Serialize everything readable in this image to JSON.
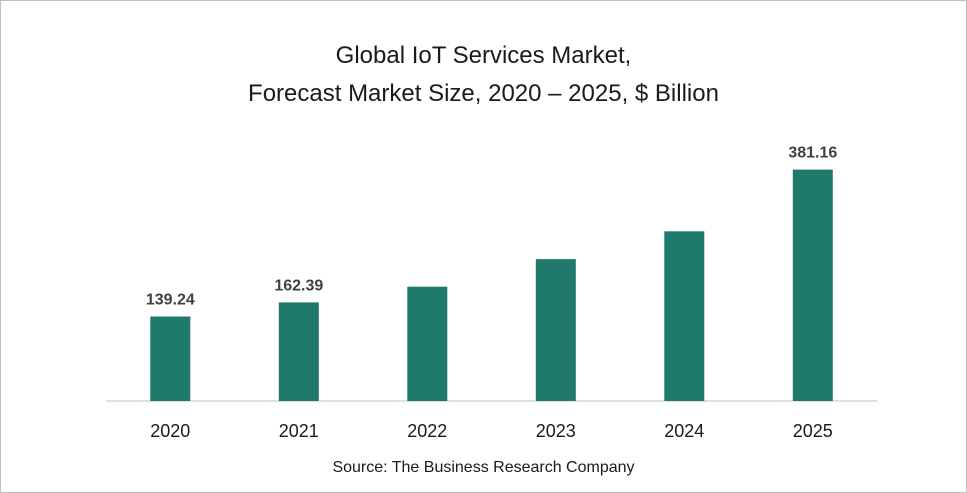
{
  "chart_data": {
    "type": "bar",
    "title_line1": "Global IoT Services Market,",
    "title_line2": "Forecast Market Size, 2020 – 2025, $ Billion",
    "categories": [
      "2020",
      "2021",
      "2022",
      "2023",
      "2024",
      "2025"
    ],
    "values": [
      139.24,
      162.39,
      188.3,
      233.7,
      279.5,
      381.16
    ],
    "data_labels": [
      "139.24",
      "162.39",
      "",
      "",
      "",
      "381.16"
    ],
    "ylim": [
      0,
      420
    ],
    "grid": false,
    "bar_color": "#207a6b",
    "source": "Source: The Business Research Company"
  }
}
